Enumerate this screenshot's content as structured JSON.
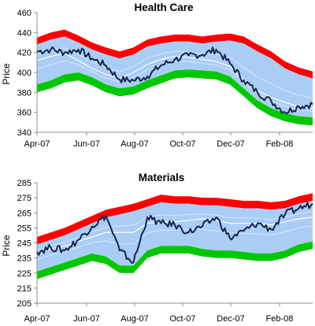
{
  "chart_data": [
    {
      "type": "area",
      "title": "Health Care",
      "ylabel": "Price",
      "ylim": [
        340,
        460
      ],
      "y_ticks": [
        340,
        360,
        380,
        400,
        420,
        440,
        460
      ],
      "x_ticks": [
        "Apr-07",
        "Jun-07",
        "Aug-07",
        "Oct-07",
        "Dec-07",
        "Feb-08"
      ],
      "bands": [
        "outer-upper",
        "upper",
        "mid-upper",
        "mid-lower",
        "lower",
        "outer-lower"
      ],
      "colors": {
        "outer": "#ff0000",
        "mid": "#a9cdf5",
        "inner_line": "#ffffff",
        "lower": "#00c800",
        "price": "#17244a"
      },
      "t": [
        0,
        0.05,
        0.1,
        0.15,
        0.2,
        0.25,
        0.3,
        0.35,
        0.4,
        0.45,
        0.5,
        0.55,
        0.6,
        0.65,
        0.7,
        0.75,
        0.8,
        0.85,
        0.9,
        0.95,
        1
      ],
      "center": [
        412,
        416,
        419,
        412,
        404,
        398,
        394,
        400,
        408,
        413,
        416,
        415,
        413,
        411,
        406,
        392,
        382,
        375,
        370,
        366,
        364
      ],
      "upper": [
        428,
        433,
        436,
        430,
        423,
        418,
        414,
        418,
        426,
        429,
        431,
        431,
        429,
        431,
        432,
        429,
        421,
        414,
        404,
        398,
        394
      ],
      "lower": [
        388,
        392,
        398,
        400,
        395,
        388,
        384,
        386,
        392,
        397,
        402,
        403,
        402,
        401,
        396,
        384,
        372,
        364,
        359,
        356,
        355
      ],
      "price": [
        421,
        423,
        420,
        423,
        414,
        407,
        393,
        392,
        396,
        407,
        413,
        417,
        418,
        423,
        409,
        392,
        380,
        371,
        360,
        366,
        368
      ]
    },
    {
      "type": "area",
      "title": "Materials",
      "ylabel": "Price",
      "ylim": [
        205,
        285
      ],
      "y_ticks": [
        205,
        215,
        225,
        235,
        245,
        255,
        265,
        275,
        285
      ],
      "x_ticks": [
        "Apr-07",
        "Jun-07",
        "Aug-07",
        "Oct-07",
        "Dec-07",
        "Feb-08"
      ],
      "bands": [
        "outer-upper",
        "upper",
        "mid-upper",
        "mid-lower",
        "lower",
        "outer-lower"
      ],
      "colors": {
        "outer": "#ff0000",
        "mid": "#a9cdf5",
        "inner_line": "#ffffff",
        "lower": "#00c800",
        "price": "#17244a"
      },
      "t": [
        0,
        0.05,
        0.1,
        0.15,
        0.2,
        0.25,
        0.3,
        0.35,
        0.4,
        0.45,
        0.5,
        0.55,
        0.6,
        0.65,
        0.7,
        0.75,
        0.8,
        0.85,
        0.9,
        0.95,
        1
      ],
      "center": [
        238,
        241,
        243,
        246,
        249,
        252,
        252,
        252,
        258,
        259,
        259,
        260,
        261,
        260,
        258,
        258,
        258,
        257,
        259,
        261,
        262
      ],
      "upper": [
        244,
        247,
        250,
        254,
        258,
        262,
        264,
        266,
        269,
        272,
        271,
        271,
        270,
        270,
        269,
        268,
        268,
        267,
        268,
        271,
        273
      ],
      "lower": [
        226,
        229,
        232,
        235,
        238,
        236,
        230,
        230,
        240,
        243,
        243,
        243,
        241,
        240,
        240,
        239,
        238,
        238,
        240,
        244,
        246
      ],
      "price": [
        239,
        242,
        240,
        247,
        256,
        263,
        240,
        232,
        262,
        258,
        257,
        252,
        256,
        262,
        248,
        253,
        258,
        254,
        264,
        268,
        271
      ]
    }
  ]
}
